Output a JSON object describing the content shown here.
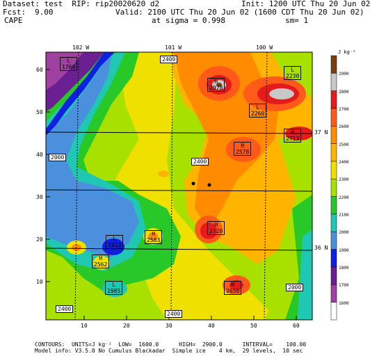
{
  "header": {
    "dataset": "Dataset: test  RIP: rip20020620 d2",
    "init": "Init: 1200 UTC Thu 20 Jun 02",
    "fcst_label": "Fcst:",
    "fcst_value": "9.00",
    "valid": "Valid: 2100 UTC Thu 20 Jun 02 (1600 CDT Thu 20 Jun 02)",
    "field": "CAPE",
    "sigma": "at sigma = 0.998",
    "sm": "sm= 1"
  },
  "map": {
    "lon_labels": [
      "102 W",
      "101 W",
      "100 W"
    ],
    "lat_labels_right": [
      "37 N",
      "36 N"
    ],
    "y_ticks": [
      "60",
      "50",
      "40",
      "30",
      "20",
      "10"
    ],
    "x_ticks": [
      "10",
      "20",
      "30",
      "40",
      "50",
      "60"
    ],
    "annotations": [
      {
        "type": "L",
        "value": "1766"
      },
      {
        "type": "H",
        "value": "2978"
      },
      {
        "type": "L",
        "value": "2230"
      },
      {
        "type": "L",
        "value": "2260"
      },
      {
        "type": "H",
        "value": "2713"
      },
      {
        "type": "H",
        "value": "2578"
      },
      {
        "type": "H",
        "value": "2720"
      },
      {
        "type": "L",
        "value": "1913"
      },
      {
        "type": "H",
        "value": "2583"
      },
      {
        "type": "H",
        "value": "2562"
      },
      {
        "type": "L",
        "value": "1985"
      },
      {
        "type": "H",
        "value": "2650"
      }
    ],
    "contour_labels": [
      "2400",
      "2000",
      "2400",
      "2400",
      "2400",
      "2000"
    ]
  },
  "colorbar": {
    "unit": "J kg⁻¹",
    "levels": [
      "2900",
      "2800",
      "2700",
      "2600",
      "2500",
      "2400",
      "2300",
      "2200",
      "2100",
      "2000",
      "1900",
      "1800",
      "1700",
      "1600"
    ],
    "colors": [
      "#7a3f0f",
      "#c8c8c8",
      "#e61a1a",
      "#ff5a1a",
      "#ff8c00",
      "#ffb400",
      "#f0e000",
      "#a8e000",
      "#28c828",
      "#20c8b4",
      "#4a90dd",
      "#1020e0",
      "#6a2090",
      "#a040a0",
      "#ffffff"
    ]
  },
  "footer": {
    "contours": "CONTOURS:  UNITS=J kg⁻¹  LOW=  1600.0      HIGH=  2900.0      INTERVAL=    100.00",
    "model": "Model info: V3.5.0 No Cumulus Blackadar  Simple ice    4 km,  29 levels,  10 sec"
  }
}
